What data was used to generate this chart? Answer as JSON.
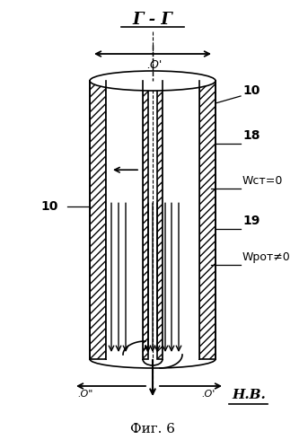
{
  "title": "Фиг. 6",
  "background_color": "#ffffff",
  "fig_width": 3.43,
  "fig_height": 4.99,
  "dpi": 100,
  "labels": {
    "top_label": "Г - Г",
    "label_10_right": "10",
    "label_18": "18",
    "label_wst": "Wст=0",
    "label_19": "19",
    "label_wrot": "Wрот≠0",
    "label_10_left": "10",
    "label_HB": "Н.В.",
    "label_o_top": ".О'",
    "label_o_bottom_left": ".О\"",
    "label_o_bottom_right": ".О'"
  },
  "colors": {
    "black": "#000000",
    "hatch": "#000000",
    "white": "#ffffff",
    "gray_light": "#dddddd"
  }
}
